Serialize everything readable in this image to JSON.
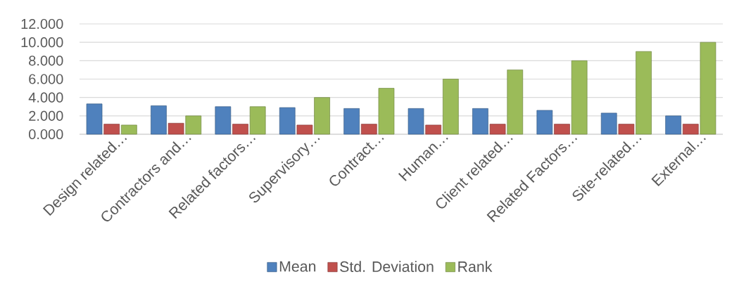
{
  "chart_data": {
    "type": "bar",
    "categories": [
      "Design related…",
      "Contractors and…",
      "Related factors…",
      "Supervisory…",
      "Contract…",
      "Human…",
      "Client related…",
      "Related Factors…",
      "Site-related…",
      "External…"
    ],
    "series": [
      {
        "name": "Mean",
        "color": "#4f81bd",
        "values": [
          3.3,
          3.1,
          3.0,
          2.9,
          2.8,
          2.8,
          2.8,
          2.6,
          2.3,
          2.0
        ]
      },
      {
        "name": "Std. Deviation",
        "color": "#c0504d",
        "values": [
          1.1,
          1.2,
          1.1,
          1.0,
          1.1,
          1.0,
          1.1,
          1.1,
          1.1,
          1.1
        ]
      },
      {
        "name": "Rank",
        "color": "#9bbb59",
        "values": [
          1,
          2,
          3,
          4,
          5,
          6,
          7,
          8,
          9,
          10
        ]
      }
    ],
    "ylim": [
      0,
      12
    ],
    "yticks": [
      {
        "value": 0,
        "label": "0.000"
      },
      {
        "value": 2,
        "label": "2.000"
      },
      {
        "value": 4,
        "label": "4.000"
      },
      {
        "value": 6,
        "label": "6.000"
      },
      {
        "value": 8,
        "label": "8.000"
      },
      {
        "value": 10,
        "label": "10.000"
      },
      {
        "value": 12,
        "label": "12.000"
      }
    ],
    "grid": "y",
    "legend": "bottom"
  }
}
